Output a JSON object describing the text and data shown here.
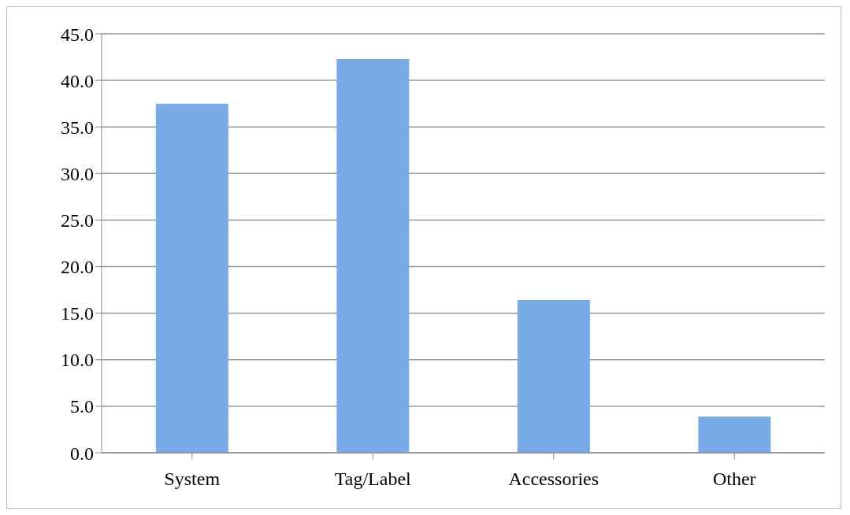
{
  "chart_data": {
    "type": "bar",
    "categories": [
      "System",
      "Tag/Label",
      "Accessories",
      "Other"
    ],
    "series": [
      {
        "color": "#78aae8",
        "values": [
          37.5,
          42.3,
          16.4,
          3.9
        ]
      }
    ],
    "ylim": [
      0,
      45
    ],
    "yticks": [
      {
        "value": 0,
        "label": "0.0"
      },
      {
        "value": 5,
        "label": "5.0"
      },
      {
        "value": 10,
        "label": "10.0"
      },
      {
        "value": 15,
        "label": "15.0"
      },
      {
        "value": 20,
        "label": "20.0"
      },
      {
        "value": 25,
        "label": "25.0"
      },
      {
        "value": 30,
        "label": "30.0"
      },
      {
        "value": 35,
        "label": "35.0"
      },
      {
        "value": 40,
        "label": "40.0"
      },
      {
        "value": 45,
        "label": "45.0"
      }
    ],
    "grid": "y",
    "legend": false
  }
}
